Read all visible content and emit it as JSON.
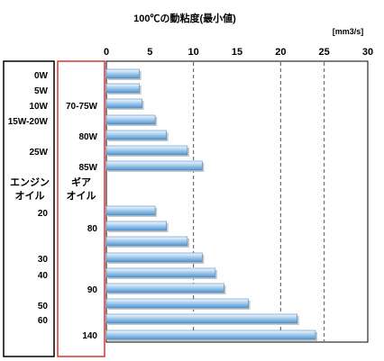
{
  "chart_data": {
    "type": "bar",
    "orientation": "horizontal",
    "title": "100℃の動粘度(最小値)",
    "unit": "[mm3/s]",
    "xlim": [
      0,
      30
    ],
    "x_ticks": [
      "0",
      "5",
      "10",
      "15",
      "20",
      "25",
      "30"
    ],
    "grid": "dashed vertical at 10, 20, 25",
    "bars": [
      {
        "value": 3.8
      },
      {
        "value": 3.8
      },
      {
        "value": 4.1
      },
      {
        "value": 5.6
      },
      {
        "value": 6.9
      },
      {
        "value": 9.3
      },
      {
        "value": 11.0
      },
      {
        "value": 5.6
      },
      {
        "value": 6.9
      },
      {
        "value": 9.3
      },
      {
        "value": 11.0
      },
      {
        "value": 12.5
      },
      {
        "value": 13.5
      },
      {
        "value": 16.3
      },
      {
        "value": 21.9
      },
      {
        "value": 24.0
      }
    ],
    "engine_oil": {
      "header": "エンジンオイル",
      "grades": [
        "0W",
        "5W",
        "10W",
        "15W-20W",
        "25W",
        "20",
        "30",
        "40",
        "50",
        "60"
      ]
    },
    "gear_oil": {
      "header": "ギアオイル",
      "grades": [
        "70-75W",
        "80W",
        "85W",
        "80",
        "90",
        "140"
      ]
    }
  }
}
